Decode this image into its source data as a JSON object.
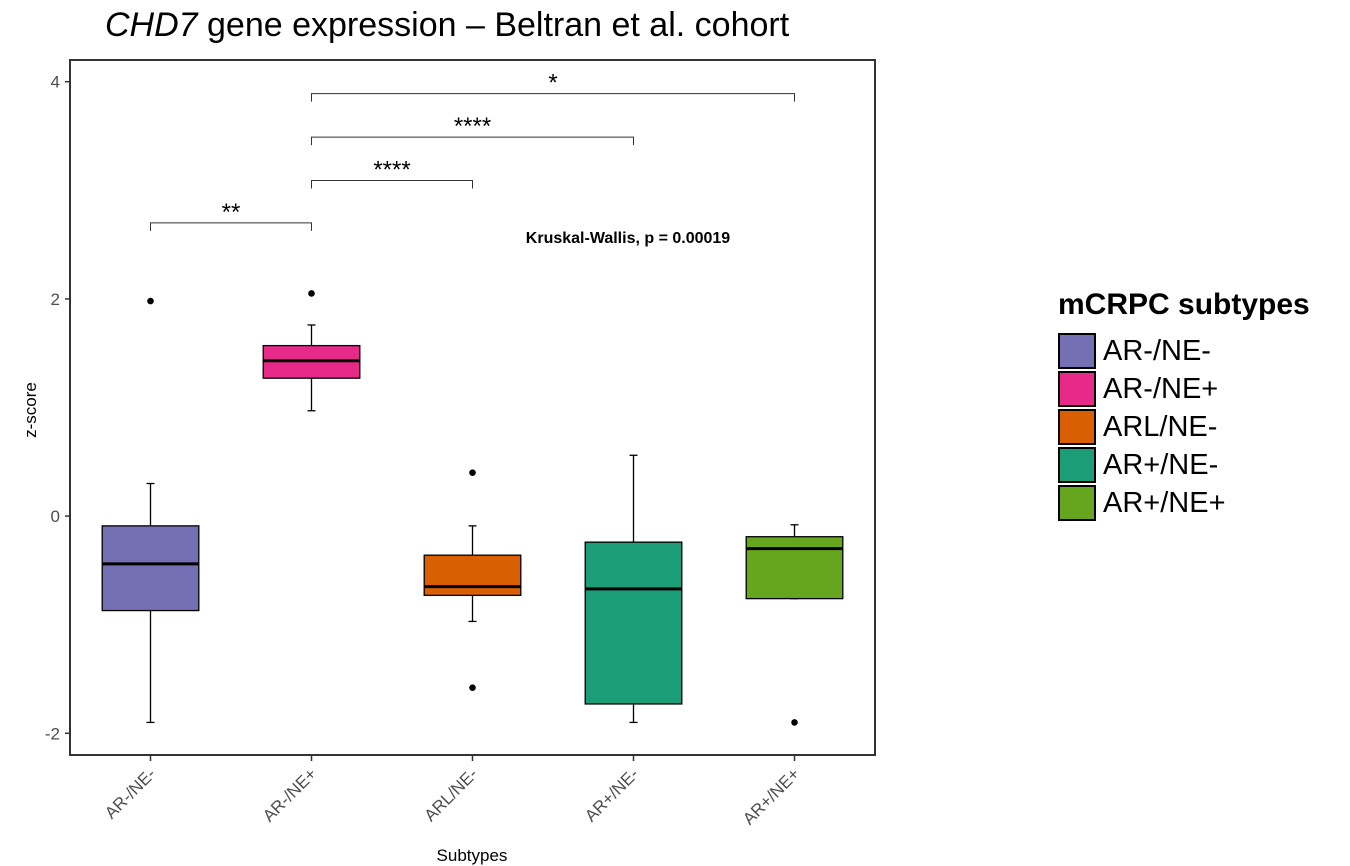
{
  "chart_data": {
    "type": "box",
    "title_italic": "CHD7",
    "title_rest": " gene expression – Beltran et al. cohort",
    "xlabel": "Subtypes",
    "ylabel": "z-score",
    "ylim": [
      -2.2,
      4.2
    ],
    "yticks": [
      -2,
      0,
      2,
      4
    ],
    "grid": false,
    "categories": [
      "AR-/NE-",
      "AR-/NE+",
      "ARL/NE-",
      "AR+/NE-",
      "AR+/NE+"
    ],
    "boxes": [
      {
        "category": "AR-/NE-",
        "color": "#7570b3",
        "whisker_low": -1.9,
        "q1": -0.87,
        "median": -0.44,
        "q3": -0.09,
        "whisker_high": 0.3,
        "outliers": [
          1.98
        ]
      },
      {
        "category": "AR-/NE+",
        "color": "#e7298a",
        "whisker_low": 0.97,
        "q1": 1.27,
        "median": 1.43,
        "q3": 1.57,
        "whisker_high": 1.76,
        "outliers": [
          2.05
        ]
      },
      {
        "category": "ARL/NE-",
        "color": "#d95f02",
        "whisker_low": -0.97,
        "q1": -0.73,
        "median": -0.65,
        "q3": -0.36,
        "whisker_high": -0.09,
        "outliers": [
          0.4,
          -1.58
        ]
      },
      {
        "category": "AR+/NE-",
        "color": "#1b9e77",
        "whisker_low": -1.9,
        "q1": -1.73,
        "median": -0.67,
        "q3": -0.24,
        "whisker_high": 0.56,
        "outliers": []
      },
      {
        "category": "AR+/NE+",
        "color": "#66a61e",
        "whisker_low": -0.76,
        "q1": -0.76,
        "median": -0.3,
        "q3": -0.19,
        "whisker_high": -0.08,
        "outliers": [
          -1.9
        ]
      }
    ],
    "comparisons": [
      {
        "from": "AR-/NE-",
        "to": "AR-/NE+",
        "y": 2.7,
        "label": "**"
      },
      {
        "from": "AR-/NE+",
        "to": "ARL/NE-",
        "y": 3.09,
        "label": "****"
      },
      {
        "from": "AR-/NE+",
        "to": "AR+/NE-",
        "y": 3.49,
        "label": "****"
      },
      {
        "from": "AR-/NE+",
        "to": "AR+/NE+",
        "y": 3.89,
        "label": "*"
      }
    ],
    "annotation": "Kruskal-Wallis, p = 0.00019",
    "legend": {
      "title": "mCRPC subtypes",
      "position": "right",
      "entries": [
        {
          "label": "AR-/NE-",
          "color": "#7570b3"
        },
        {
          "label": "AR-/NE+",
          "color": "#e7298a"
        },
        {
          "label": "ARL/NE-",
          "color": "#d95f02"
        },
        {
          "label": "AR+/NE-",
          "color": "#1b9e77"
        },
        {
          "label": "AR+/NE+",
          "color": "#66a61e"
        }
      ]
    }
  }
}
